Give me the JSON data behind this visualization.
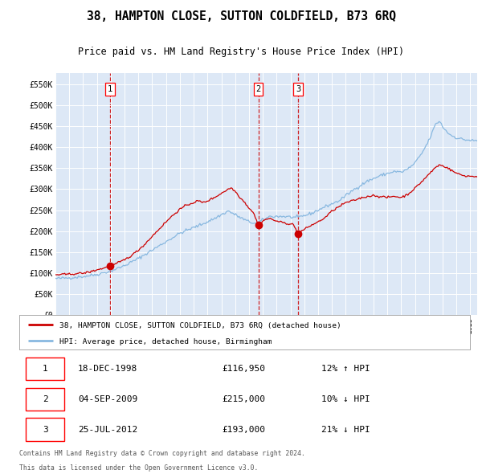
{
  "title": "38, HAMPTON CLOSE, SUTTON COLDFIELD, B73 6RQ",
  "subtitle": "Price paid vs. HM Land Registry's House Price Index (HPI)",
  "legend_label_red": "38, HAMPTON CLOSE, SUTTON COLDFIELD, B73 6RQ (detached house)",
  "legend_label_blue": "HPI: Average price, detached house, Birmingham",
  "footer_line1": "Contains HM Land Registry data © Crown copyright and database right 2024.",
  "footer_line2": "This data is licensed under the Open Government Licence v3.0.",
  "transactions": [
    {
      "num": "1",
      "date": "18-DEC-1998",
      "price": "£116,950",
      "hpi_diff": "12% ↑ HPI",
      "x_year": 1998.958
    },
    {
      "num": "2",
      "date": "04-SEP-2009",
      "price": "£215,000",
      "hpi_diff": "10% ↓ HPI",
      "x_year": 2009.671
    },
    {
      "num": "3",
      "date": "25-JUL-2012",
      "price": "£193,000",
      "hpi_diff": "21% ↓ HPI",
      "x_year": 2012.558
    }
  ],
  "marker_values": [
    116950,
    215000,
    193000
  ],
  "ylim": [
    0,
    575000
  ],
  "yticks": [
    0,
    50000,
    100000,
    150000,
    200000,
    250000,
    300000,
    350000,
    400000,
    450000,
    500000,
    550000
  ],
  "ytick_labels": [
    "£0",
    "£50K",
    "£100K",
    "£150K",
    "£200K",
    "£250K",
    "£300K",
    "£350K",
    "£400K",
    "£450K",
    "£500K",
    "£550K"
  ],
  "plot_bg": "#dde8f6",
  "fig_bg": "#ffffff",
  "red_line_color": "#cc0000",
  "blue_line_color": "#88b8e0",
  "grid_color": "#ffffff",
  "dashed_line_color": "#cc0000",
  "marker_color": "#cc0000",
  "x_start": 1995.0,
  "x_end": 2025.5,
  "x_ticks_start": 1995,
  "x_ticks_end": 2025
}
